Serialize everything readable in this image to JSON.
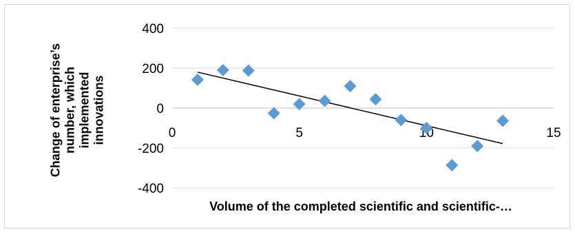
{
  "chart_data": {
    "type": "scatter",
    "xlabel": "Volume of the completed scientific and scientific-…",
    "ylabel_lines": [
      "Change of enterprise’s",
      "number, which",
      "implemented",
      "innovations"
    ],
    "xlim": [
      0,
      15
    ],
    "ylim": [
      -400,
      400
    ],
    "x_ticks": [
      0,
      5,
      10,
      15
    ],
    "y_ticks": [
      -400,
      -200,
      0,
      200,
      400
    ],
    "grid": "horizontal",
    "marker_color": "#5b9bd5",
    "trendline_color": "#000000",
    "points": [
      {
        "x": 1,
        "y": 142
      },
      {
        "x": 2,
        "y": 190
      },
      {
        "x": 3,
        "y": 188
      },
      {
        "x": 4,
        "y": -26
      },
      {
        "x": 5,
        "y": 20
      },
      {
        "x": 6,
        "y": 36
      },
      {
        "x": 7,
        "y": 110
      },
      {
        "x": 8,
        "y": 44
      },
      {
        "x": 9,
        "y": -60
      },
      {
        "x": 10,
        "y": -100
      },
      {
        "x": 11,
        "y": -286
      },
      {
        "x": 12,
        "y": -190
      },
      {
        "x": 13,
        "y": -64
      }
    ],
    "trendline": {
      "x_start": 1,
      "y_start": 180,
      "x_end": 13,
      "y_end": -178
    }
  }
}
